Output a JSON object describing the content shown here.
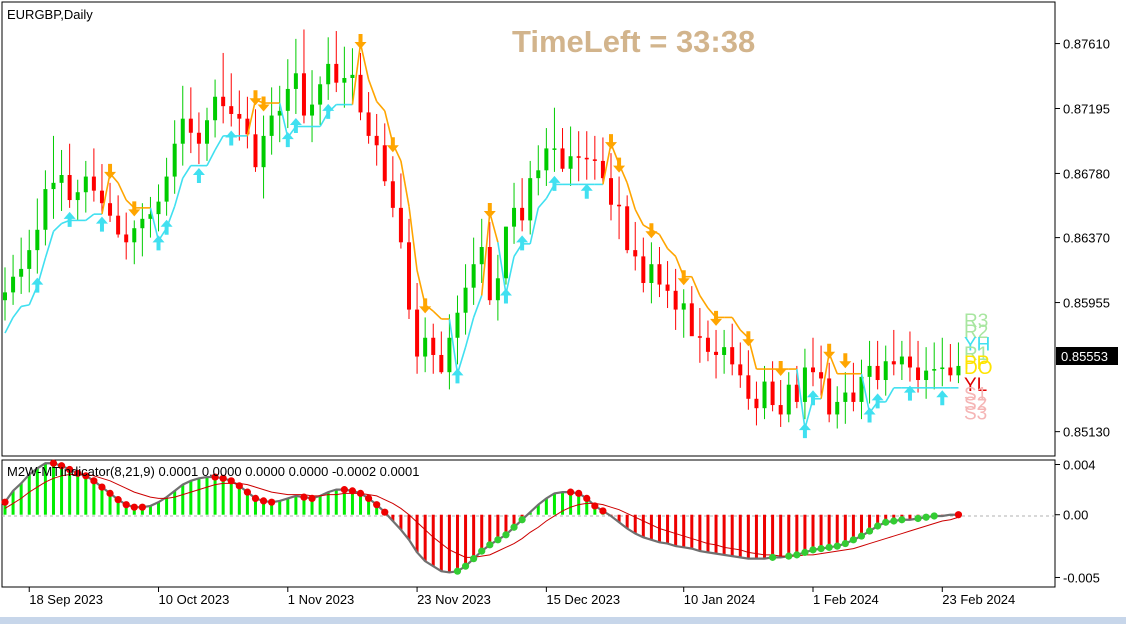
{
  "window": {
    "symbol_title": "EURGBP,Daily"
  },
  "timer": {
    "text": "TimeLeft = 33:38",
    "color": "#d2b48c"
  },
  "price_axis": {
    "labels": [
      "0.87610",
      "0.87195",
      "0.86780",
      "0.86370",
      "0.85955",
      "0.85130"
    ],
    "current_price": "0.85553"
  },
  "pivot_labels": [
    {
      "text": "R3",
      "color": "#a8e6a0"
    },
    {
      "text": "R2",
      "color": "#a8e6a0"
    },
    {
      "text": "YH",
      "color": "#40e0f0"
    },
    {
      "text": "R1",
      "color": "#a8e6a0"
    },
    {
      "text": "PP",
      "color": "#ffe400"
    },
    {
      "text": "DO",
      "color": "#ffe400"
    },
    {
      "text": "YL",
      "color": "#e00000"
    },
    {
      "text": "S1",
      "color": "#f5b5b5"
    },
    {
      "text": "S2",
      "color": "#f5b5b5"
    },
    {
      "text": "S3",
      "color": "#f5b5b5"
    }
  ],
  "indicator": {
    "title": "M2W-MTIndicator(8,21,9) 0.0001 0.0000 0.0000 0.0000 -0.0002 0.0001",
    "axis_labels": [
      "0.004",
      "0.00",
      "-0.005"
    ]
  },
  "time_axis": {
    "labels": [
      "18 Sep 2023",
      "10 Oct 2023",
      "1 Nov 2023",
      "23 Nov 2023",
      "15 Dec 2023",
      "10 Jan 2024",
      "1 Feb 2024",
      "23 Feb 2024"
    ]
  },
  "colors": {
    "bull": "#00cc00",
    "bear": "#ff0000",
    "up_signal": "#40e0f0",
    "down_signal": "#ffa500",
    "hist_pos": "#00ee00",
    "hist_neg": "#ee0000",
    "signal_line": "#cc0000",
    "dot_red": "#ee0000",
    "dot_green": "#33cc33"
  },
  "chart_data": [
    {
      "type": "line",
      "title": "EURGBP,Daily",
      "note": "Daily candlestick chart (open, high, low, close) with trailing stop line and buy/sell arrows",
      "x": [
        "2023-09-13",
        "2023-09-14",
        "2023-09-15",
        "2023-09-18",
        "2023-09-19",
        "2023-09-20",
        "2023-09-21",
        "2023-09-22",
        "2023-09-25",
        "2023-09-26",
        "2023-09-27",
        "2023-09-28",
        "2023-09-29",
        "2023-10-02",
        "2023-10-03",
        "2023-10-04",
        "2023-10-05",
        "2023-10-06",
        "2023-10-09",
        "2023-10-10",
        "2023-10-11",
        "2023-10-12",
        "2023-10-13",
        "2023-10-16",
        "2023-10-17",
        "2023-10-18",
        "2023-10-19",
        "2023-10-20",
        "2023-10-23",
        "2023-10-24",
        "2023-10-25",
        "2023-10-26",
        "2023-10-27",
        "2023-10-30",
        "2023-10-31",
        "2023-11-01",
        "2023-11-02",
        "2023-11-03",
        "2023-11-06",
        "2023-11-07",
        "2023-11-08",
        "2023-11-09",
        "2023-11-10",
        "2023-11-13",
        "2023-11-14",
        "2023-11-15",
        "2023-11-16",
        "2023-11-17",
        "2023-11-20",
        "2023-11-21",
        "2023-11-22",
        "2023-11-23",
        "2023-11-24",
        "2023-11-27",
        "2023-11-28",
        "2023-11-29",
        "2023-11-30",
        "2023-12-01",
        "2023-12-04",
        "2023-12-05",
        "2023-12-06",
        "2023-12-07",
        "2023-12-08",
        "2023-12-11",
        "2023-12-12",
        "2023-12-13",
        "2023-12-14",
        "2023-12-15",
        "2023-12-18",
        "2023-12-19",
        "2023-12-20",
        "2023-12-21",
        "2023-12-22",
        "2023-12-26",
        "2023-12-27",
        "2023-12-28",
        "2023-12-29",
        "2024-01-02",
        "2024-01-03",
        "2024-01-04",
        "2024-01-05",
        "2024-01-08",
        "2024-01-09",
        "2024-01-10",
        "2024-01-11",
        "2024-01-12",
        "2024-01-15",
        "2024-01-16",
        "2024-01-17",
        "2024-01-18",
        "2024-01-19",
        "2024-01-22",
        "2024-01-23",
        "2024-01-24",
        "2024-01-25",
        "2024-01-26",
        "2024-01-29",
        "2024-01-30",
        "2024-01-31",
        "2024-02-01",
        "2024-02-02",
        "2024-02-05",
        "2024-02-06",
        "2024-02-07",
        "2024-02-08",
        "2024-02-09",
        "2024-02-12",
        "2024-02-13",
        "2024-02-14",
        "2024-02-15",
        "2024-02-16",
        "2024-02-19",
        "2024-02-20",
        "2024-02-21",
        "2024-02-22",
        "2024-02-23",
        "2024-02-26",
        "2024-02-27",
        "2024-02-28"
      ],
      "open": [
        0.8597,
        0.8602,
        0.8612,
        0.8617,
        0.8629,
        0.8642,
        0.8668,
        0.8672,
        0.8677,
        0.8661,
        0.8666,
        0.8676,
        0.8667,
        0.8659,
        0.8651,
        0.8639,
        0.8634,
        0.8643,
        0.8649,
        0.8652,
        0.866,
        0.8676,
        0.8697,
        0.8713,
        0.8704,
        0.8697,
        0.8712,
        0.8727,
        0.8721,
        0.8716,
        0.8713,
        0.8703,
        0.8682,
        0.8702,
        0.8715,
        0.8718,
        0.8732,
        0.8742,
        0.8715,
        0.8722,
        0.8735,
        0.8748,
        0.8736,
        0.8739,
        0.8741,
        0.8717,
        0.8702,
        0.8696,
        0.8673,
        0.8656,
        0.8634,
        0.8591,
        0.8561,
        0.8573,
        0.8562,
        0.8551,
        0.8573,
        0.8589,
        0.8605,
        0.862,
        0.8631,
        0.8597,
        0.8611,
        0.8644,
        0.8656,
        0.8648,
        0.8675,
        0.868,
        0.8694,
        0.8694,
        0.8681,
        0.8689,
        0.8688,
        0.8687,
        0.8686,
        0.8675,
        0.8658,
        0.8657,
        0.8629,
        0.8625,
        0.8608,
        0.862,
        0.8607,
        0.8603,
        0.8591,
        0.8595,
        0.8574,
        0.8573,
        0.8564,
        0.8562,
        0.8567,
        0.8556,
        0.8549,
        0.8534,
        0.8528,
        0.8545,
        0.853,
        0.8524,
        0.8543,
        0.8532,
        0.8554,
        0.8551,
        0.8547,
        0.8524,
        0.8532,
        0.8538,
        0.8532,
        0.8548,
        0.8555,
        0.8546,
        0.8558,
        0.8556,
        0.8561,
        0.8554,
        0.8546,
        0.8552,
        0.8553,
        0.8554,
        0.8549
      ],
      "high": [
        0.8618,
        0.8626,
        0.8637,
        0.8642,
        0.8662,
        0.868,
        0.8702,
        0.8693,
        0.8697,
        0.8674,
        0.8686,
        0.8694,
        0.8684,
        0.8672,
        0.8664,
        0.8653,
        0.8648,
        0.8659,
        0.8663,
        0.8671,
        0.8688,
        0.8712,
        0.8734,
        0.8733,
        0.8717,
        0.872,
        0.8738,
        0.8755,
        0.8742,
        0.8731,
        0.8727,
        0.8719,
        0.8715,
        0.8733,
        0.8734,
        0.8751,
        0.8764,
        0.877,
        0.8744,
        0.874,
        0.8765,
        0.8769,
        0.8759,
        0.8758,
        0.8755,
        0.873,
        0.8716,
        0.871,
        0.8689,
        0.8678,
        0.8649,
        0.8608,
        0.8586,
        0.8582,
        0.8577,
        0.8588,
        0.86,
        0.862,
        0.8637,
        0.8649,
        0.8647,
        0.8626,
        0.8644,
        0.8672,
        0.8675,
        0.8686,
        0.8696,
        0.8707,
        0.872,
        0.8707,
        0.8708,
        0.8705,
        0.8705,
        0.8702,
        0.8701,
        0.8691,
        0.8676,
        0.8664,
        0.8647,
        0.8637,
        0.8634,
        0.8631,
        0.8622,
        0.8617,
        0.8604,
        0.8606,
        0.8592,
        0.8584,
        0.8578,
        0.8578,
        0.8582,
        0.857,
        0.8565,
        0.8545,
        0.8555,
        0.8558,
        0.8546,
        0.8551,
        0.8555,
        0.8566,
        0.8573,
        0.8568,
        0.8557,
        0.8542,
        0.8551,
        0.8557,
        0.8559,
        0.8571,
        0.8571,
        0.8568,
        0.8578,
        0.8571,
        0.8577,
        0.8571,
        0.8567,
        0.857,
        0.8573,
        0.8569,
        0.857
      ],
      "low": [
        0.8584,
        0.8594,
        0.8601,
        0.8602,
        0.8614,
        0.8632,
        0.8649,
        0.8654,
        0.8656,
        0.8648,
        0.8653,
        0.866,
        0.8653,
        0.8647,
        0.8637,
        0.8623,
        0.862,
        0.8625,
        0.8637,
        0.8641,
        0.8651,
        0.8665,
        0.8683,
        0.8691,
        0.8684,
        0.8686,
        0.8701,
        0.871,
        0.8708,
        0.8699,
        0.8694,
        0.8679,
        0.8662,
        0.869,
        0.8698,
        0.8707,
        0.8716,
        0.871,
        0.8698,
        0.8709,
        0.8725,
        0.873,
        0.872,
        0.8723,
        0.8712,
        0.8697,
        0.8683,
        0.867,
        0.865,
        0.863,
        0.8585,
        0.855,
        0.8551,
        0.855,
        0.855,
        0.854,
        0.8556,
        0.8575,
        0.8594,
        0.8608,
        0.8594,
        0.8584,
        0.8607,
        0.8633,
        0.8641,
        0.8639,
        0.8664,
        0.867,
        0.8679,
        0.8679,
        0.867,
        0.8673,
        0.8674,
        0.8674,
        0.8672,
        0.8648,
        0.8636,
        0.8627,
        0.8616,
        0.8602,
        0.8595,
        0.8599,
        0.8592,
        0.8578,
        0.8573,
        0.8576,
        0.8557,
        0.8558,
        0.8547,
        0.855,
        0.8549,
        0.8541,
        0.8527,
        0.8517,
        0.8521,
        0.8526,
        0.8516,
        0.8519,
        0.8528,
        0.8521,
        0.8542,
        0.8536,
        0.8519,
        0.8515,
        0.8518,
        0.8526,
        0.8521,
        0.8531,
        0.854,
        0.8536,
        0.8549,
        0.8546,
        0.8545,
        0.8538,
        0.8534,
        0.854,
        0.8542,
        0.8545,
        0.8544
      ],
      "close": [
        0.8602,
        0.8612,
        0.8617,
        0.8629,
        0.8642,
        0.8668,
        0.8672,
        0.8677,
        0.8661,
        0.8666,
        0.8676,
        0.8667,
        0.8659,
        0.8651,
        0.8639,
        0.8634,
        0.8643,
        0.8649,
        0.8652,
        0.866,
        0.8676,
        0.8697,
        0.8713,
        0.8704,
        0.8697,
        0.8712,
        0.8727,
        0.8721,
        0.8716,
        0.8713,
        0.8703,
        0.8682,
        0.8702,
        0.8715,
        0.8718,
        0.8732,
        0.8742,
        0.8715,
        0.8722,
        0.8735,
        0.8748,
        0.8736,
        0.8739,
        0.8741,
        0.8717,
        0.8702,
        0.8696,
        0.8673,
        0.8656,
        0.8634,
        0.8591,
        0.8561,
        0.8573,
        0.8562,
        0.8551,
        0.8573,
        0.8589,
        0.8605,
        0.862,
        0.8631,
        0.8597,
        0.8611,
        0.8644,
        0.8656,
        0.8648,
        0.8675,
        0.868,
        0.8694,
        0.8694,
        0.8681,
        0.8689,
        0.8688,
        0.8687,
        0.8686,
        0.8675,
        0.8658,
        0.8657,
        0.8629,
        0.8625,
        0.8608,
        0.862,
        0.8607,
        0.8603,
        0.8591,
        0.8595,
        0.8574,
        0.8573,
        0.8564,
        0.8562,
        0.8567,
        0.8556,
        0.8549,
        0.8534,
        0.8528,
        0.8545,
        0.853,
        0.8524,
        0.8543,
        0.8532,
        0.8554,
        0.8551,
        0.8547,
        0.8524,
        0.8532,
        0.8538,
        0.8532,
        0.8548,
        0.8555,
        0.8546,
        0.8558,
        0.8556,
        0.8561,
        0.8554,
        0.8546,
        0.8552,
        0.8553,
        0.8554,
        0.8549,
        0.8555
      ],
      "ylim": [
        0.85,
        0.8785
      ],
      "ylabel": "",
      "xlabel": "",
      "current_price": 0.85553,
      "pivot_levels": {
        "R3": 0.8585,
        "R2": 0.8578,
        "YH": 0.857,
        "R1": 0.8564,
        "PP": 0.8558,
        "DO": 0.8555,
        "YL": 0.8544,
        "S1": 0.8538,
        "S2": 0.8532,
        "S3": 0.8526
      },
      "grid": false,
      "legend": "none"
    },
    {
      "type": "bar",
      "title": "M2W-MTIndicator(8,21,9) 0.0001 0.0000 0.0000 0.0000 -0.0002 0.0001",
      "note": "Oscillator histogram (green positive, red negative) with grey main line, red signal line and colored dots",
      "x_ref": "same dates as price panel",
      "values": [
        0.001,
        0.0019,
        0.0025,
        0.0032,
        0.0037,
        0.0041,
        0.0041,
        0.0039,
        0.0036,
        0.0033,
        0.0031,
        0.0027,
        0.0022,
        0.0017,
        0.0012,
        0.0008,
        0.0006,
        0.0006,
        0.0007,
        0.001,
        0.0014,
        0.0019,
        0.0024,
        0.0027,
        0.0029,
        0.003,
        0.003,
        0.0029,
        0.0027,
        0.0023,
        0.0018,
        0.0013,
        0.0011,
        0.001,
        0.0011,
        0.0013,
        0.0015,
        0.0014,
        0.0013,
        0.0015,
        0.0018,
        0.002,
        0.002,
        0.0019,
        0.0017,
        0.0013,
        0.0008,
        0.0002,
        -0.0005,
        -0.0012,
        -0.002,
        -0.003,
        -0.0037,
        -0.0041,
        -0.0045,
        -0.0046,
        -0.0045,
        -0.0041,
        -0.0035,
        -0.0029,
        -0.0024,
        -0.002,
        -0.0016,
        -0.001,
        -0.0004,
        0.0002,
        0.0008,
        0.0013,
        0.0017,
        0.0018,
        0.0018,
        0.0017,
        0.0013,
        0.0007,
        0.0003,
        -0.0001,
        -0.0006,
        -0.0011,
        -0.0015,
        -0.0018,
        -0.002,
        -0.0022,
        -0.0023,
        -0.0025,
        -0.0026,
        -0.0027,
        -0.0029,
        -0.003,
        -0.0031,
        -0.0032,
        -0.0033,
        -0.0034,
        -0.0035,
        -0.0035,
        -0.0035,
        -0.0034,
        -0.0034,
        -0.0033,
        -0.0032,
        -0.003,
        -0.0028,
        -0.0027,
        -0.0026,
        -0.0025,
        -0.0023,
        -0.002,
        -0.0017,
        -0.0013,
        -0.0009,
        -0.0006,
        -0.0005,
        -0.0004,
        -0.0004,
        -0.0003,
        -0.0002,
        -0.0001,
        -0.0001,
        0.0,
        0.0
      ],
      "signal": [
        0.0005,
        0.0009,
        0.0013,
        0.0018,
        0.0022,
        0.0026,
        0.0029,
        0.0031,
        0.0032,
        0.0032,
        0.0032,
        0.0031,
        0.0029,
        0.0027,
        0.0024,
        0.0021,
        0.0018,
        0.0016,
        0.0014,
        0.0013,
        0.0013,
        0.0014,
        0.0016,
        0.0018,
        0.002,
        0.0022,
        0.0024,
        0.0025,
        0.0025,
        0.0025,
        0.0024,
        0.0022,
        0.002,
        0.0018,
        0.0017,
        0.0016,
        0.0016,
        0.0016,
        0.0015,
        0.0015,
        0.0016,
        0.0016,
        0.0017,
        0.0017,
        0.0017,
        0.0016,
        0.0015,
        0.0012,
        0.0009,
        0.0005,
        0.0,
        -0.0006,
        -0.0012,
        -0.0018,
        -0.0023,
        -0.0028,
        -0.0031,
        -0.0034,
        -0.0034,
        -0.0033,
        -0.0032,
        -0.0029,
        -0.0026,
        -0.0023,
        -0.0019,
        -0.0014,
        -0.001,
        -0.0005,
        -0.0001,
        0.0003,
        0.0006,
        0.0008,
        0.0009,
        0.0009,
        0.0008,
        0.0006,
        0.0004,
        0.0001,
        -0.0002,
        -0.0005,
        -0.0008,
        -0.0011,
        -0.0013,
        -0.0015,
        -0.0017,
        -0.0019,
        -0.0021,
        -0.0023,
        -0.0024,
        -0.0026,
        -0.0027,
        -0.0028,
        -0.003,
        -0.0031,
        -0.0032,
        -0.0032,
        -0.0033,
        -0.0033,
        -0.0033,
        -0.0032,
        -0.0032,
        -0.0031,
        -0.003,
        -0.0029,
        -0.0028,
        -0.0027,
        -0.0025,
        -0.0023,
        -0.0021,
        -0.0019,
        -0.0017,
        -0.0015,
        -0.0013,
        -0.0011,
        -0.0009,
        -0.0007,
        -0.0005,
        -0.0004,
        -0.0002
      ],
      "ylim": [
        -0.0056,
        0.0042
      ],
      "ticks": [
        0.004,
        0.0,
        -0.005
      ],
      "grid": false,
      "legend": "none"
    }
  ]
}
